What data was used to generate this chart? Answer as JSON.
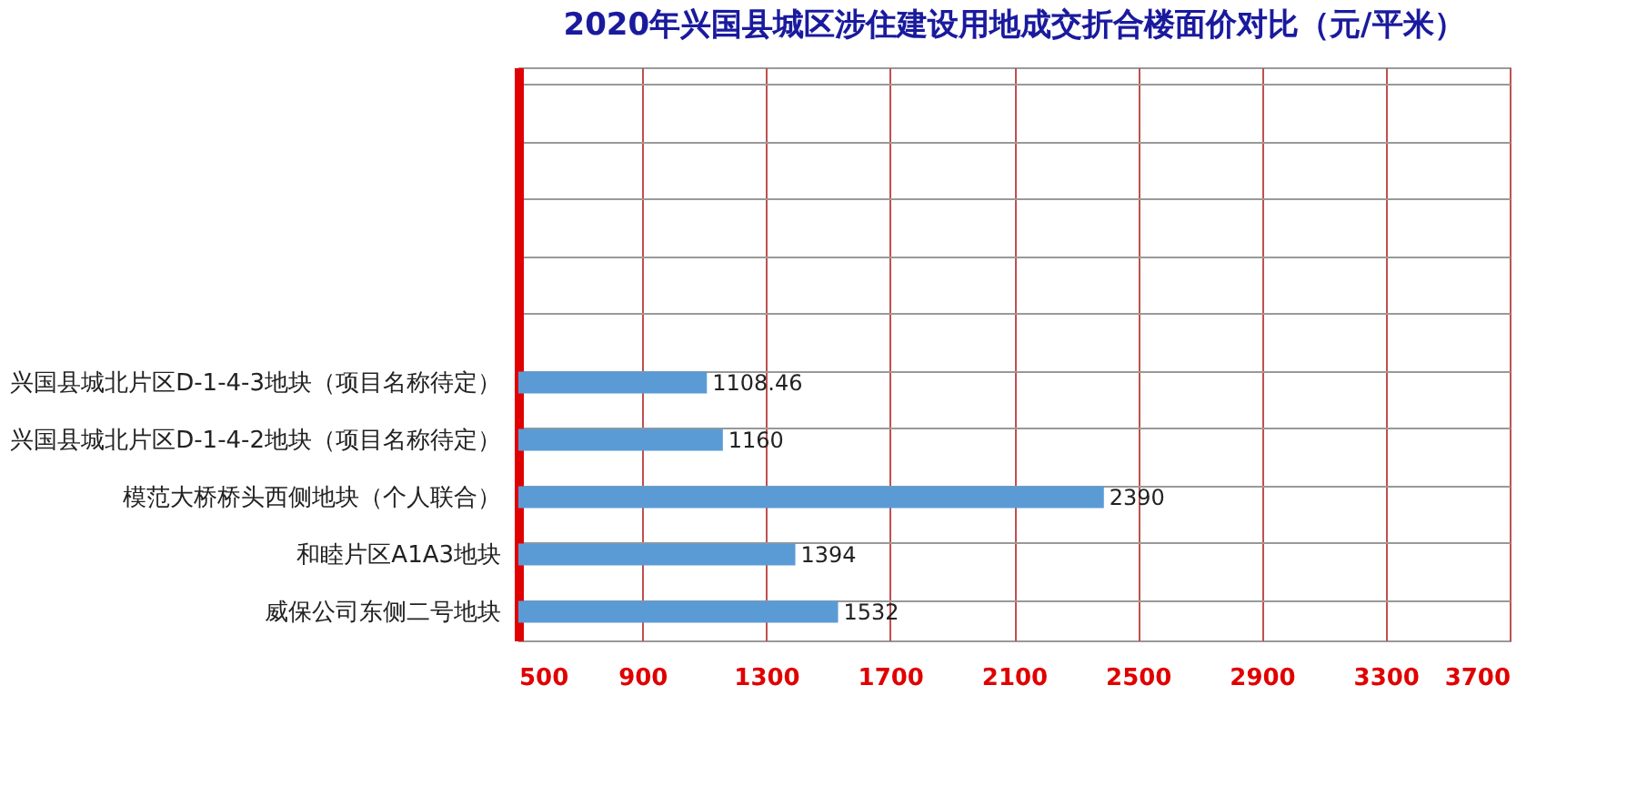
{
  "chart_data": {
    "type": "bar",
    "orientation": "horizontal",
    "title": "2020年兴国县城区涉住建设用地成交折合楼面价对比（元/平米）",
    "categories": [
      null,
      null,
      null,
      null,
      null,
      "兴国县城北片区D-1-4-3地块（项目名称待定）",
      "兴国县城北片区D-1-4-2地块（项目名称待定）",
      "模范大桥桥头西侧地块（个人联合）",
      "和睦片区A1A3地块",
      "威保公司东侧二号地块"
    ],
    "values": [
      null,
      null,
      null,
      null,
      null,
      1108.46,
      1160,
      2390,
      1394,
      1532
    ],
    "color": "#5b9bd5",
    "xlim": [
      500,
      3700
    ],
    "xticks": [
      500,
      900,
      1300,
      1700,
      2100,
      2500,
      2900,
      3300,
      3700
    ],
    "grid": true,
    "data_labels": true
  }
}
